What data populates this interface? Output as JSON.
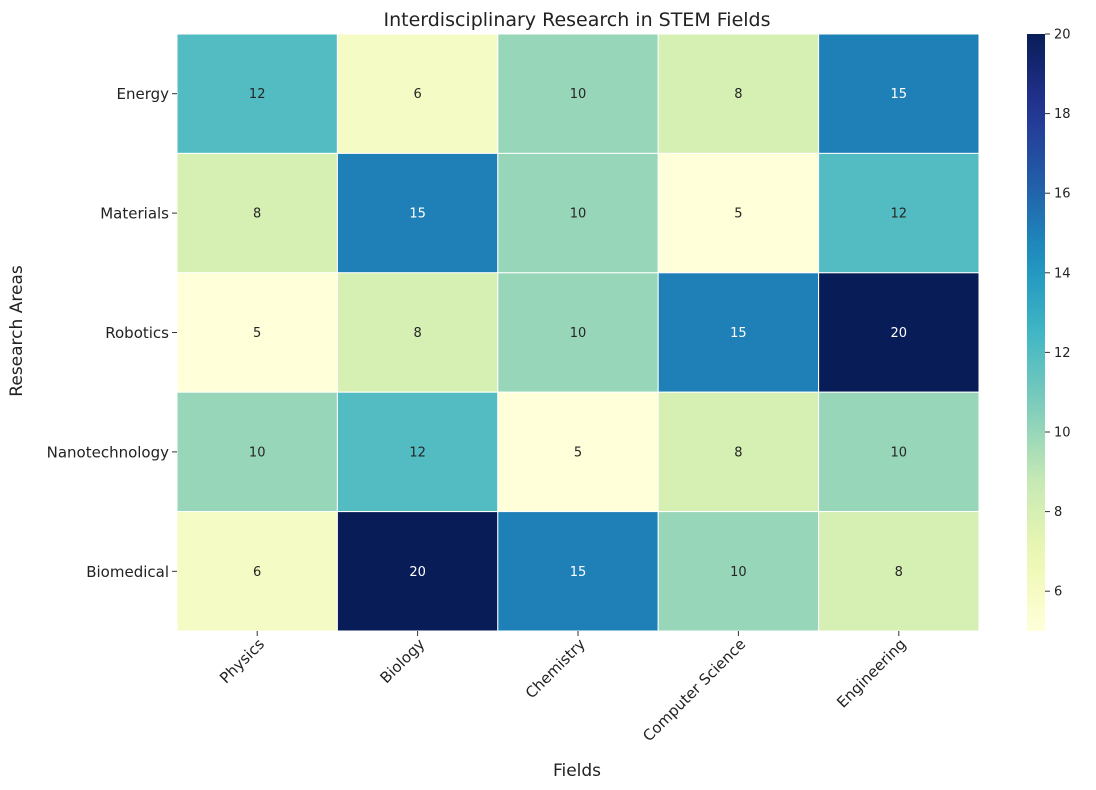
{
  "chart_data": {
    "type": "heatmap",
    "title": "Interdisciplinary Research in STEM Fields",
    "xlabel": "Fields",
    "ylabel": "Research Areas",
    "x_categories": [
      "Physics",
      "Biology",
      "Chemistry",
      "Computer Science",
      "Engineering"
    ],
    "y_categories": [
      "Energy",
      "Materials",
      "Robotics",
      "Nanotechnology",
      "Biomedical"
    ],
    "values": [
      [
        12,
        6,
        10,
        8,
        15
      ],
      [
        8,
        15,
        10,
        5,
        12
      ],
      [
        5,
        8,
        10,
        15,
        20
      ],
      [
        10,
        12,
        5,
        8,
        10
      ],
      [
        6,
        20,
        15,
        10,
        8
      ]
    ],
    "colorbar": {
      "range": [
        5,
        20
      ],
      "ticks": [
        "6",
        "8",
        "10",
        "12",
        "14",
        "16",
        "18",
        "20"
      ],
      "colormap": "YlGnBu"
    },
    "annotated": true,
    "grid": false
  }
}
